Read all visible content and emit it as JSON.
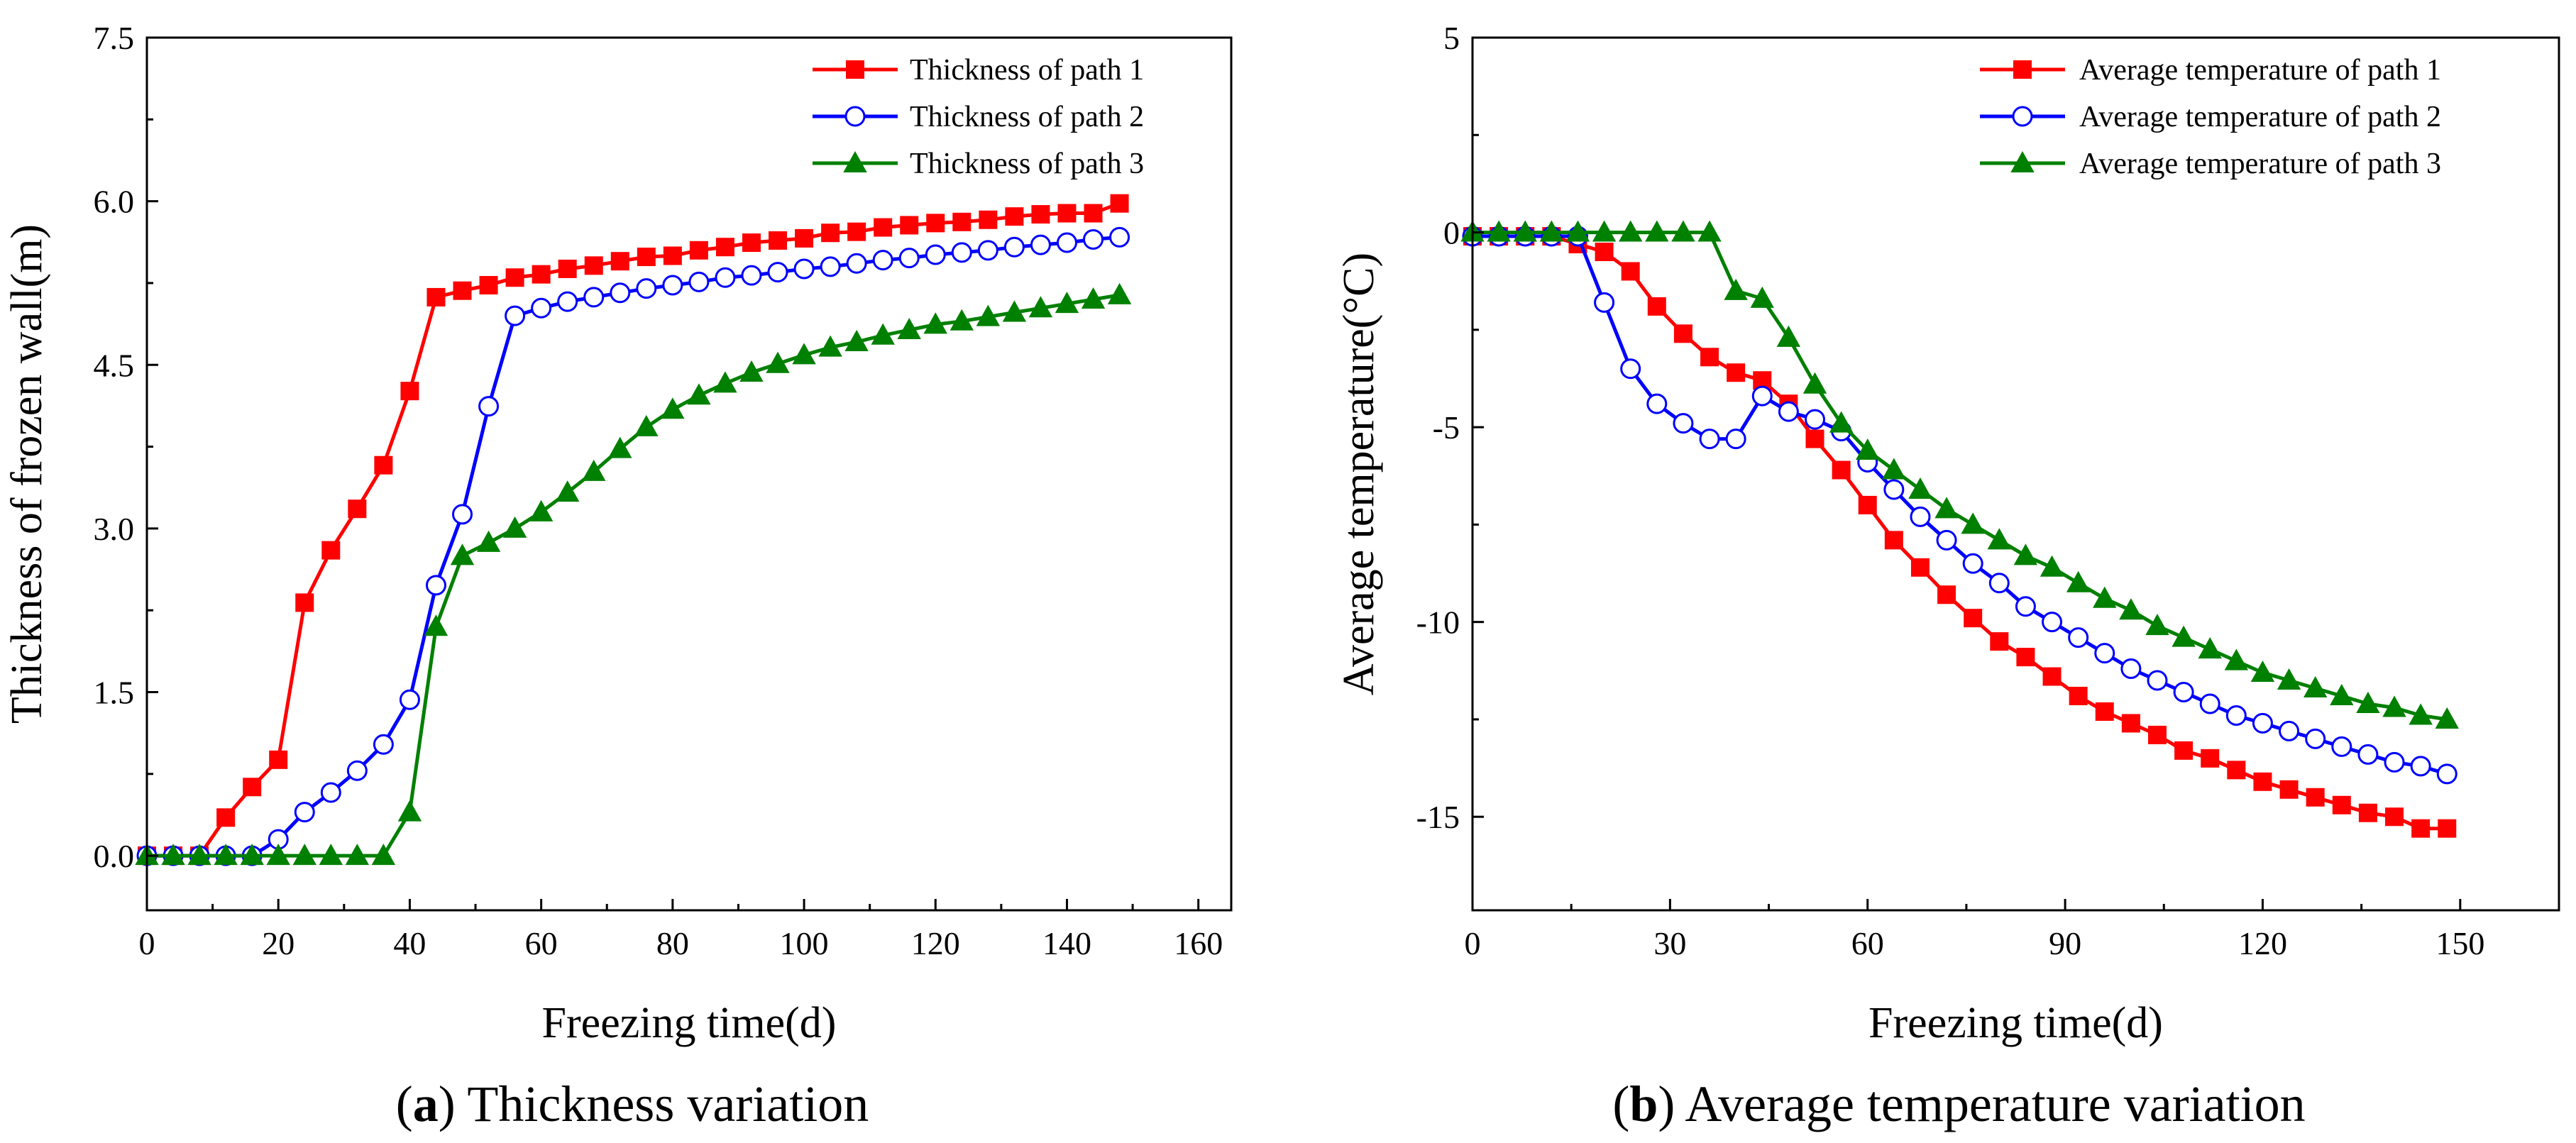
{
  "chart_data": [
    {
      "id": "a",
      "type": "line",
      "title": "",
      "caption_letter": "a",
      "caption_open": "(",
      "caption_close": ")",
      "caption_text": " Thickness variation",
      "xlabel": "Freezing time(d)",
      "ylabel": "Thickness of frozen wall(m)",
      "xlim": [
        0,
        165
      ],
      "ylim": [
        -0.5,
        7.5
      ],
      "xticks": [
        0,
        20,
        40,
        60,
        80,
        100,
        120,
        140,
        160
      ],
      "yticks": [
        0.0,
        1.5,
        3.0,
        4.5,
        6.0,
        7.5
      ],
      "ytick_labels": [
        "0.0",
        "1.5",
        "3.0",
        "4.5",
        "6.0",
        "7.5"
      ],
      "grid": false,
      "legend_position": "top-right",
      "series": [
        {
          "name": "Thickness of path 1",
          "color": "#ff0000",
          "marker": "square",
          "x": [
            0,
            4,
            8,
            12,
            16,
            20,
            24,
            28,
            32,
            36,
            40,
            44,
            48,
            52,
            56,
            60,
            64,
            68,
            72,
            76,
            80,
            84,
            88,
            92,
            96,
            100,
            104,
            108,
            112,
            116,
            120,
            124,
            128,
            132,
            136,
            140,
            144,
            148
          ],
          "y": [
            0.0,
            0.0,
            0.0,
            0.35,
            0.63,
            0.88,
            2.32,
            2.8,
            3.18,
            3.58,
            4.26,
            5.12,
            5.18,
            5.23,
            5.3,
            5.33,
            5.38,
            5.41,
            5.45,
            5.49,
            5.5,
            5.55,
            5.58,
            5.62,
            5.64,
            5.66,
            5.71,
            5.72,
            5.76,
            5.78,
            5.8,
            5.81,
            5.83,
            5.86,
            5.88,
            5.89,
            5.89,
            5.98
          ]
        },
        {
          "name": "Thickness of path 2",
          "color": "#0000ff",
          "marker": "circle-open",
          "x": [
            0,
            4,
            8,
            12,
            16,
            20,
            24,
            28,
            32,
            36,
            40,
            44,
            48,
            52,
            56,
            60,
            64,
            68,
            72,
            76,
            80,
            84,
            88,
            92,
            96,
            100,
            104,
            108,
            112,
            116,
            120,
            124,
            128,
            132,
            136,
            140,
            144,
            148
          ],
          "y": [
            0.0,
            0.0,
            0.0,
            0.0,
            0.0,
            0.15,
            0.4,
            0.58,
            0.78,
            1.02,
            1.43,
            2.48,
            3.13,
            4.12,
            4.95,
            5.02,
            5.08,
            5.12,
            5.16,
            5.2,
            5.23,
            5.26,
            5.3,
            5.32,
            5.35,
            5.38,
            5.4,
            5.43,
            5.46,
            5.48,
            5.51,
            5.53,
            5.55,
            5.58,
            5.6,
            5.62,
            5.65,
            5.67
          ]
        },
        {
          "name": "Thickness of path 3",
          "color": "#008000",
          "marker": "triangle",
          "x": [
            0,
            4,
            8,
            12,
            16,
            20,
            24,
            28,
            32,
            36,
            40,
            44,
            48,
            52,
            56,
            60,
            64,
            68,
            72,
            76,
            80,
            84,
            88,
            92,
            96,
            100,
            104,
            108,
            112,
            116,
            120,
            124,
            128,
            132,
            136,
            140,
            144,
            148
          ],
          "y": [
            0.0,
            0.0,
            0.0,
            0.0,
            0.0,
            0.0,
            0.0,
            0.0,
            0.0,
            0.0,
            0.4,
            2.1,
            2.75,
            2.87,
            3.0,
            3.15,
            3.33,
            3.52,
            3.73,
            3.93,
            4.09,
            4.22,
            4.33,
            4.43,
            4.51,
            4.59,
            4.66,
            4.71,
            4.77,
            4.82,
            4.87,
            4.9,
            4.94,
            4.98,
            5.02,
            5.06,
            5.1,
            5.14
          ]
        }
      ]
    },
    {
      "id": "b",
      "type": "line",
      "title": "",
      "caption_letter": "b",
      "caption_open": "(",
      "caption_close": ")",
      "caption_text": " Average temperature variation",
      "xlabel": "Freezing time(d)",
      "ylabel": "Average temperature(°C)",
      "xlim": [
        0,
        165
      ],
      "ylim": [
        -17.4,
        5
      ],
      "xticks": [
        0,
        30,
        60,
        90,
        120,
        150
      ],
      "yticks": [
        -15,
        -10,
        -5,
        0,
        5
      ],
      "ytick_labels": [
        "-15",
        "-10",
        "-5",
        "0",
        "5"
      ],
      "grid": false,
      "legend_position": "top-right",
      "series": [
        {
          "name": "Average temperature of path 1",
          "color": "#ff0000",
          "marker": "square",
          "x": [
            0,
            4,
            8,
            12,
            16,
            20,
            24,
            28,
            32,
            36,
            40,
            44,
            48,
            52,
            56,
            60,
            64,
            68,
            72,
            76,
            80,
            84,
            88,
            92,
            96,
            100,
            104,
            108,
            112,
            116,
            120,
            124,
            128,
            132,
            136,
            140,
            144,
            148
          ],
          "y": [
            -0.1,
            -0.1,
            -0.1,
            -0.1,
            -0.3,
            -0.5,
            -1.0,
            -1.9,
            -2.6,
            -3.2,
            -3.6,
            -3.8,
            -4.4,
            -5.3,
            -6.1,
            -7.0,
            -7.9,
            -8.6,
            -9.3,
            -9.9,
            -10.5,
            -10.9,
            -11.4,
            -11.9,
            -12.3,
            -12.6,
            -12.9,
            -13.3,
            -13.5,
            -13.8,
            -14.1,
            -14.3,
            -14.5,
            -14.7,
            -14.9,
            -15.0,
            -15.3,
            -15.3
          ]
        },
        {
          "name": "Average temperature of path 2",
          "color": "#0000ff",
          "marker": "circle-open",
          "x": [
            0,
            4,
            8,
            12,
            16,
            20,
            24,
            28,
            32,
            36,
            40,
            44,
            48,
            52,
            56,
            60,
            64,
            68,
            72,
            76,
            80,
            84,
            88,
            92,
            96,
            100,
            104,
            108,
            112,
            116,
            120,
            124,
            128,
            132,
            136,
            140,
            144,
            148
          ],
          "y": [
            -0.1,
            -0.1,
            -0.1,
            -0.1,
            -0.1,
            -1.8,
            -3.5,
            -4.4,
            -4.9,
            -5.3,
            -5.3,
            -4.2,
            -4.6,
            -4.8,
            -5.1,
            -5.9,
            -6.6,
            -7.3,
            -7.9,
            -8.5,
            -9.0,
            -9.6,
            -10.0,
            -10.4,
            -10.8,
            -11.2,
            -11.5,
            -11.8,
            -12.1,
            -12.4,
            -12.6,
            -12.8,
            -13.0,
            -13.2,
            -13.4,
            -13.6,
            -13.7,
            -13.9
          ]
        },
        {
          "name": "Average temperature of path 3",
          "color": "#008000",
          "marker": "triangle",
          "x": [
            0,
            4,
            8,
            12,
            16,
            20,
            24,
            28,
            32,
            36,
            40,
            44,
            48,
            52,
            56,
            60,
            64,
            68,
            72,
            76,
            80,
            84,
            88,
            92,
            96,
            100,
            104,
            108,
            112,
            116,
            120,
            124,
            128,
            132,
            136,
            140,
            144,
            148
          ],
          "y": [
            0.0,
            0.0,
            0.0,
            0.0,
            0.0,
            0.0,
            0.0,
            0.0,
            0.0,
            0.0,
            -1.5,
            -1.7,
            -2.7,
            -3.9,
            -4.9,
            -5.6,
            -6.1,
            -6.6,
            -7.1,
            -7.5,
            -7.9,
            -8.3,
            -8.6,
            -9.0,
            -9.4,
            -9.7,
            -10.1,
            -10.4,
            -10.7,
            -11.0,
            -11.3,
            -11.5,
            -11.7,
            -11.9,
            -12.1,
            -12.2,
            -12.4,
            -12.5
          ]
        }
      ]
    }
  ]
}
